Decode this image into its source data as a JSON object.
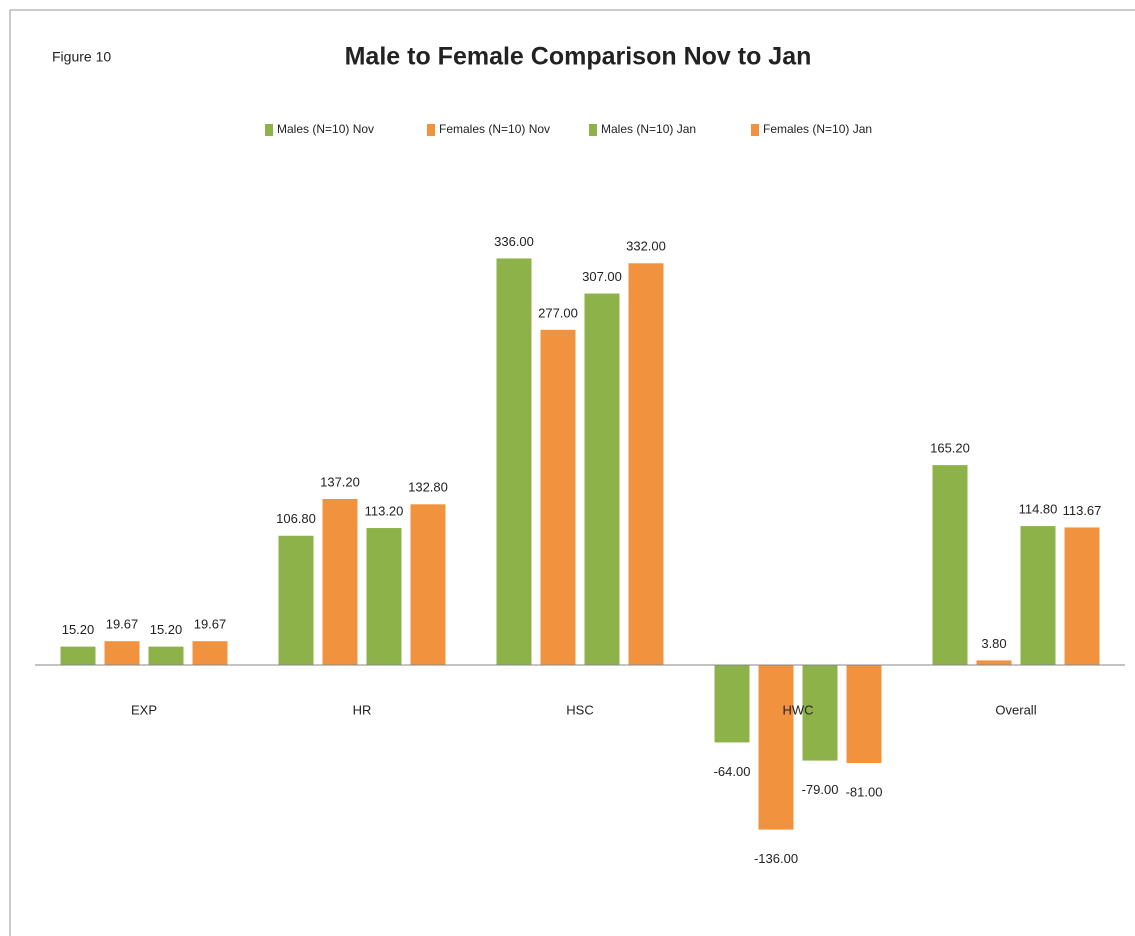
{
  "chart_data": {
    "type": "bar",
    "title": "Male to Female Comparison Nov to Jan",
    "annotation": "Figure 10",
    "categories": [
      "EXP",
      "HR",
      "HSC",
      "HWC",
      "Overall"
    ],
    "series": [
      {
        "name": "Males (N=10) Nov",
        "color": "#8db24a",
        "values": [
          15.2,
          106.8,
          336,
          -64,
          165.2
        ],
        "value_labels": [
          "15.20",
          "106.80",
          "336.00",
          "-64.00",
          "165.20"
        ]
      },
      {
        "name": "Females (N=10) Nov",
        "color": "#f0923e",
        "values": [
          19.67,
          137.2,
          277,
          -136,
          3.8
        ],
        "value_labels": [
          "19.67",
          "137.20",
          "277.00",
          "-136.00",
          "3.80"
        ]
      },
      {
        "name": "Males (N=10) Jan",
        "color": "#8db24a",
        "values": [
          15.2,
          113.2,
          307,
          -79,
          114.8
        ],
        "value_labels": [
          "15.20",
          "113.20",
          "307.00",
          "-79.00",
          "114.80"
        ]
      },
      {
        "name": "Females (N=10) Jan",
        "color": "#f0923e",
        "values": [
          19.67,
          132.8,
          332,
          -81,
          113.67
        ],
        "value_labels": [
          "19.67",
          "132.80",
          "332.00",
          "-81.00",
          "113.67"
        ]
      }
    ],
    "ylim": [
      -200,
      400
    ],
    "legend": "top"
  }
}
